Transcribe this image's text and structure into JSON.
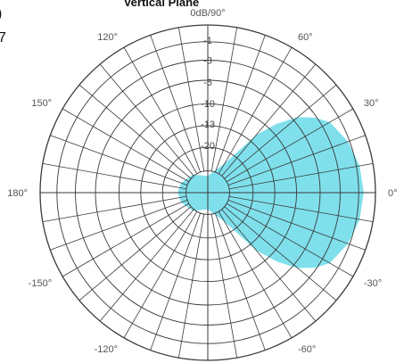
{
  "chart_data": {
    "type": "polar-area",
    "title": "Vertical Plane",
    "top_label": "0dB/90°",
    "clipped_left_text": [
      ")",
      "7"
    ],
    "angle_labels": [
      {
        "angle": 60,
        "text": "60°"
      },
      {
        "angle": 30,
        "text": "30°"
      },
      {
        "angle": 0,
        "text": "0°"
      },
      {
        "angle": -30,
        "text": "-30°"
      },
      {
        "angle": -60,
        "text": "-60°"
      },
      {
        "angle": -120,
        "text": "-120°"
      },
      {
        "angle": -150,
        "text": "-150°"
      },
      {
        "angle": 180,
        "text": "180°"
      },
      {
        "angle": 150,
        "text": "150°"
      },
      {
        "angle": 120,
        "text": "120°"
      }
    ],
    "ring_labels": [
      "-1",
      "-3",
      "-6",
      "-10",
      "-13",
      "-20"
    ],
    "fill_color": "#7fe0ec",
    "grid_color": "#3a3a3a",
    "pattern": {
      "angles_deg": [
        0,
        10,
        20,
        30,
        35,
        40,
        45,
        50,
        60,
        90,
        130,
        160,
        180,
        200,
        230,
        270,
        300,
        310,
        315,
        320,
        325,
        330,
        340,
        350
      ],
      "radius_fraction": [
        0.93,
        0.92,
        0.89,
        0.84,
        0.78,
        0.7,
        0.58,
        0.45,
        0.2,
        0.1,
        0.14,
        0.17,
        0.18,
        0.17,
        0.14,
        0.1,
        0.2,
        0.45,
        0.58,
        0.7,
        0.78,
        0.84,
        0.89,
        0.92
      ]
    }
  }
}
